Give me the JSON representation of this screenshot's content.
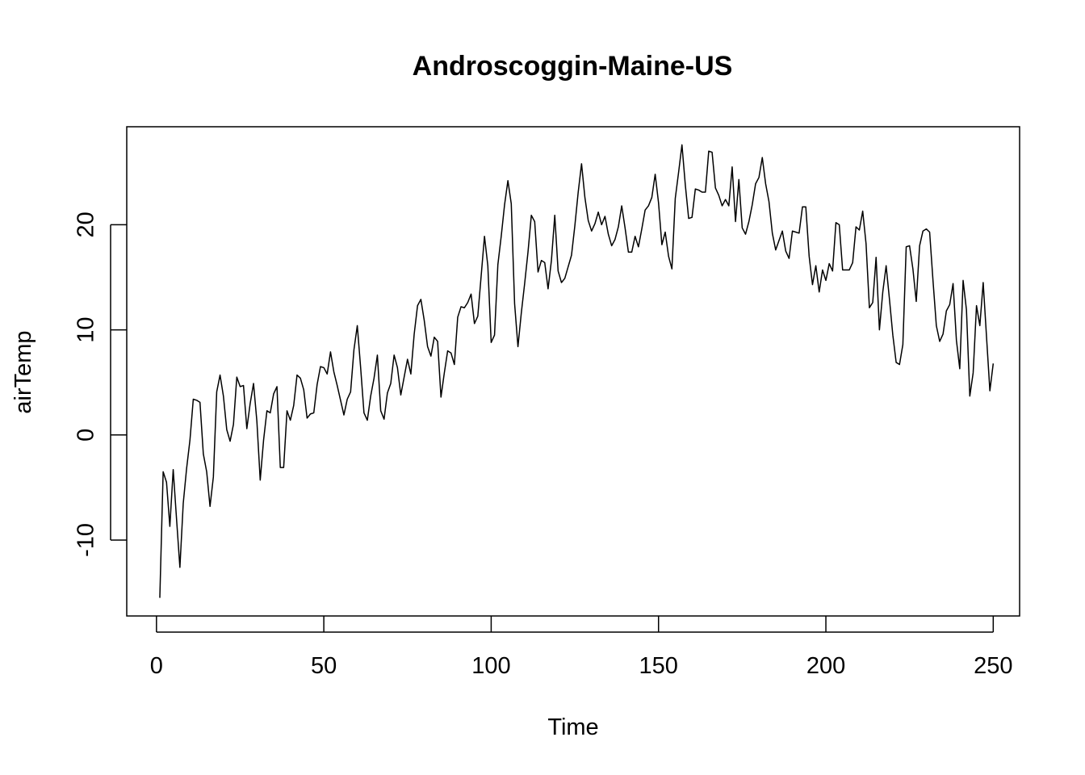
{
  "chart_data": {
    "type": "line",
    "title": "Androscoggin-Maine-US",
    "xlabel": "Time",
    "ylabel": "airTemp",
    "xlim": [
      1,
      248
    ],
    "ylim": [
      -15.5,
      27.6
    ],
    "xticks": [
      0,
      50,
      100,
      150,
      200,
      250
    ],
    "yticks": [
      -10,
      0,
      10,
      20
    ],
    "xtick_labels": [
      "0",
      "50",
      "100",
      "150",
      "200",
      "250"
    ],
    "ytick_labels": [
      "-10",
      "0",
      "10",
      "20"
    ],
    "grid": false,
    "legend": "none",
    "series": [
      {
        "color": "#000000",
        "x_start": 1,
        "x_step": 1,
        "values": [
          -15.5,
          -3.5,
          -4.5,
          -8.7,
          -3.3,
          -8.0,
          -12.6,
          -6.5,
          -3.2,
          -0.5,
          3.4,
          3.3,
          3.1,
          -1.8,
          -3.5,
          -6.8,
          -4.0,
          4.1,
          5.7,
          3.7,
          0.5,
          -0.6,
          1.0,
          5.5,
          4.6,
          4.7,
          0.6,
          3.0,
          4.9,
          1.3,
          -4.3,
          -0.5,
          2.3,
          2.1,
          3.9,
          4.6,
          -3.1,
          -3.1,
          2.3,
          1.4,
          2.8,
          5.7,
          5.4,
          4.3,
          1.6,
          2.0,
          2.1,
          4.8,
          6.5,
          6.4,
          5.8,
          7.9,
          6.0,
          4.7,
          3.3,
          1.9,
          3.4,
          4.1,
          8.1,
          10.4,
          6.4,
          2.1,
          1.4,
          3.7,
          5.4,
          7.6,
          2.3,
          1.5,
          4.0,
          4.9,
          7.6,
          6.4,
          3.8,
          5.5,
          7.2,
          5.8,
          9.6,
          12.3,
          12.9,
          10.9,
          8.4,
          7.5,
          9.3,
          8.9,
          3.6,
          5.9,
          8.0,
          7.8,
          6.7,
          11.2,
          12.2,
          12.1,
          12.6,
          13.4,
          10.6,
          11.3,
          15.1,
          18.9,
          16.1,
          8.8,
          9.5,
          16.2,
          18.9,
          21.9,
          24.2,
          22.0,
          12.5,
          8.4,
          11.6,
          14.4,
          17.4,
          20.9,
          20.3,
          15.5,
          16.6,
          16.4,
          13.9,
          16.6,
          20.9,
          15.6,
          14.5,
          14.9,
          16.0,
          17.1,
          19.9,
          23.1,
          25.8,
          22.6,
          20.4,
          19.4,
          20.1,
          21.2,
          20.0,
          20.8,
          19.1,
          18.0,
          18.6,
          19.8,
          21.8,
          19.7,
          17.4,
          17.4,
          18.9,
          17.9,
          19.6,
          21.4,
          21.8,
          22.6,
          24.8,
          22.1,
          18.1,
          19.3,
          17.0,
          15.8,
          22.5,
          25.0,
          27.6,
          23.8,
          20.6,
          20.7,
          23.4,
          23.3,
          23.1,
          23.1,
          27.0,
          26.9,
          23.5,
          22.8,
          21.8,
          22.4,
          21.8,
          25.5,
          20.3,
          24.3,
          19.7,
          19.1,
          20.3,
          21.9,
          23.9,
          24.5,
          26.4,
          23.9,
          22.2,
          19.2,
          17.6,
          18.5,
          19.4,
          17.5,
          16.8,
          19.4,
          19.3,
          19.2,
          21.7,
          21.7,
          17.0,
          14.3,
          16.1,
          13.6,
          15.7,
          14.7,
          16.3,
          15.6,
          20.2,
          20.0,
          15.7,
          15.7,
          15.7,
          16.4,
          19.8,
          19.5,
          21.3,
          18.2,
          12.1,
          12.6,
          16.9,
          10.0,
          13.6,
          16.1,
          12.9,
          9.5,
          6.9,
          6.7,
          8.6,
          17.9,
          18.0,
          15.8,
          12.7,
          18.0,
          19.4,
          19.6,
          19.3,
          14.7,
          10.4,
          8.9,
          9.6,
          11.8,
          12.4,
          14.4,
          9.0,
          6.3,
          14.7,
          11.9,
          3.7,
          5.9,
          12.3,
          10.4,
          14.5,
          9.3,
          4.2,
          6.8
        ]
      }
    ]
  }
}
